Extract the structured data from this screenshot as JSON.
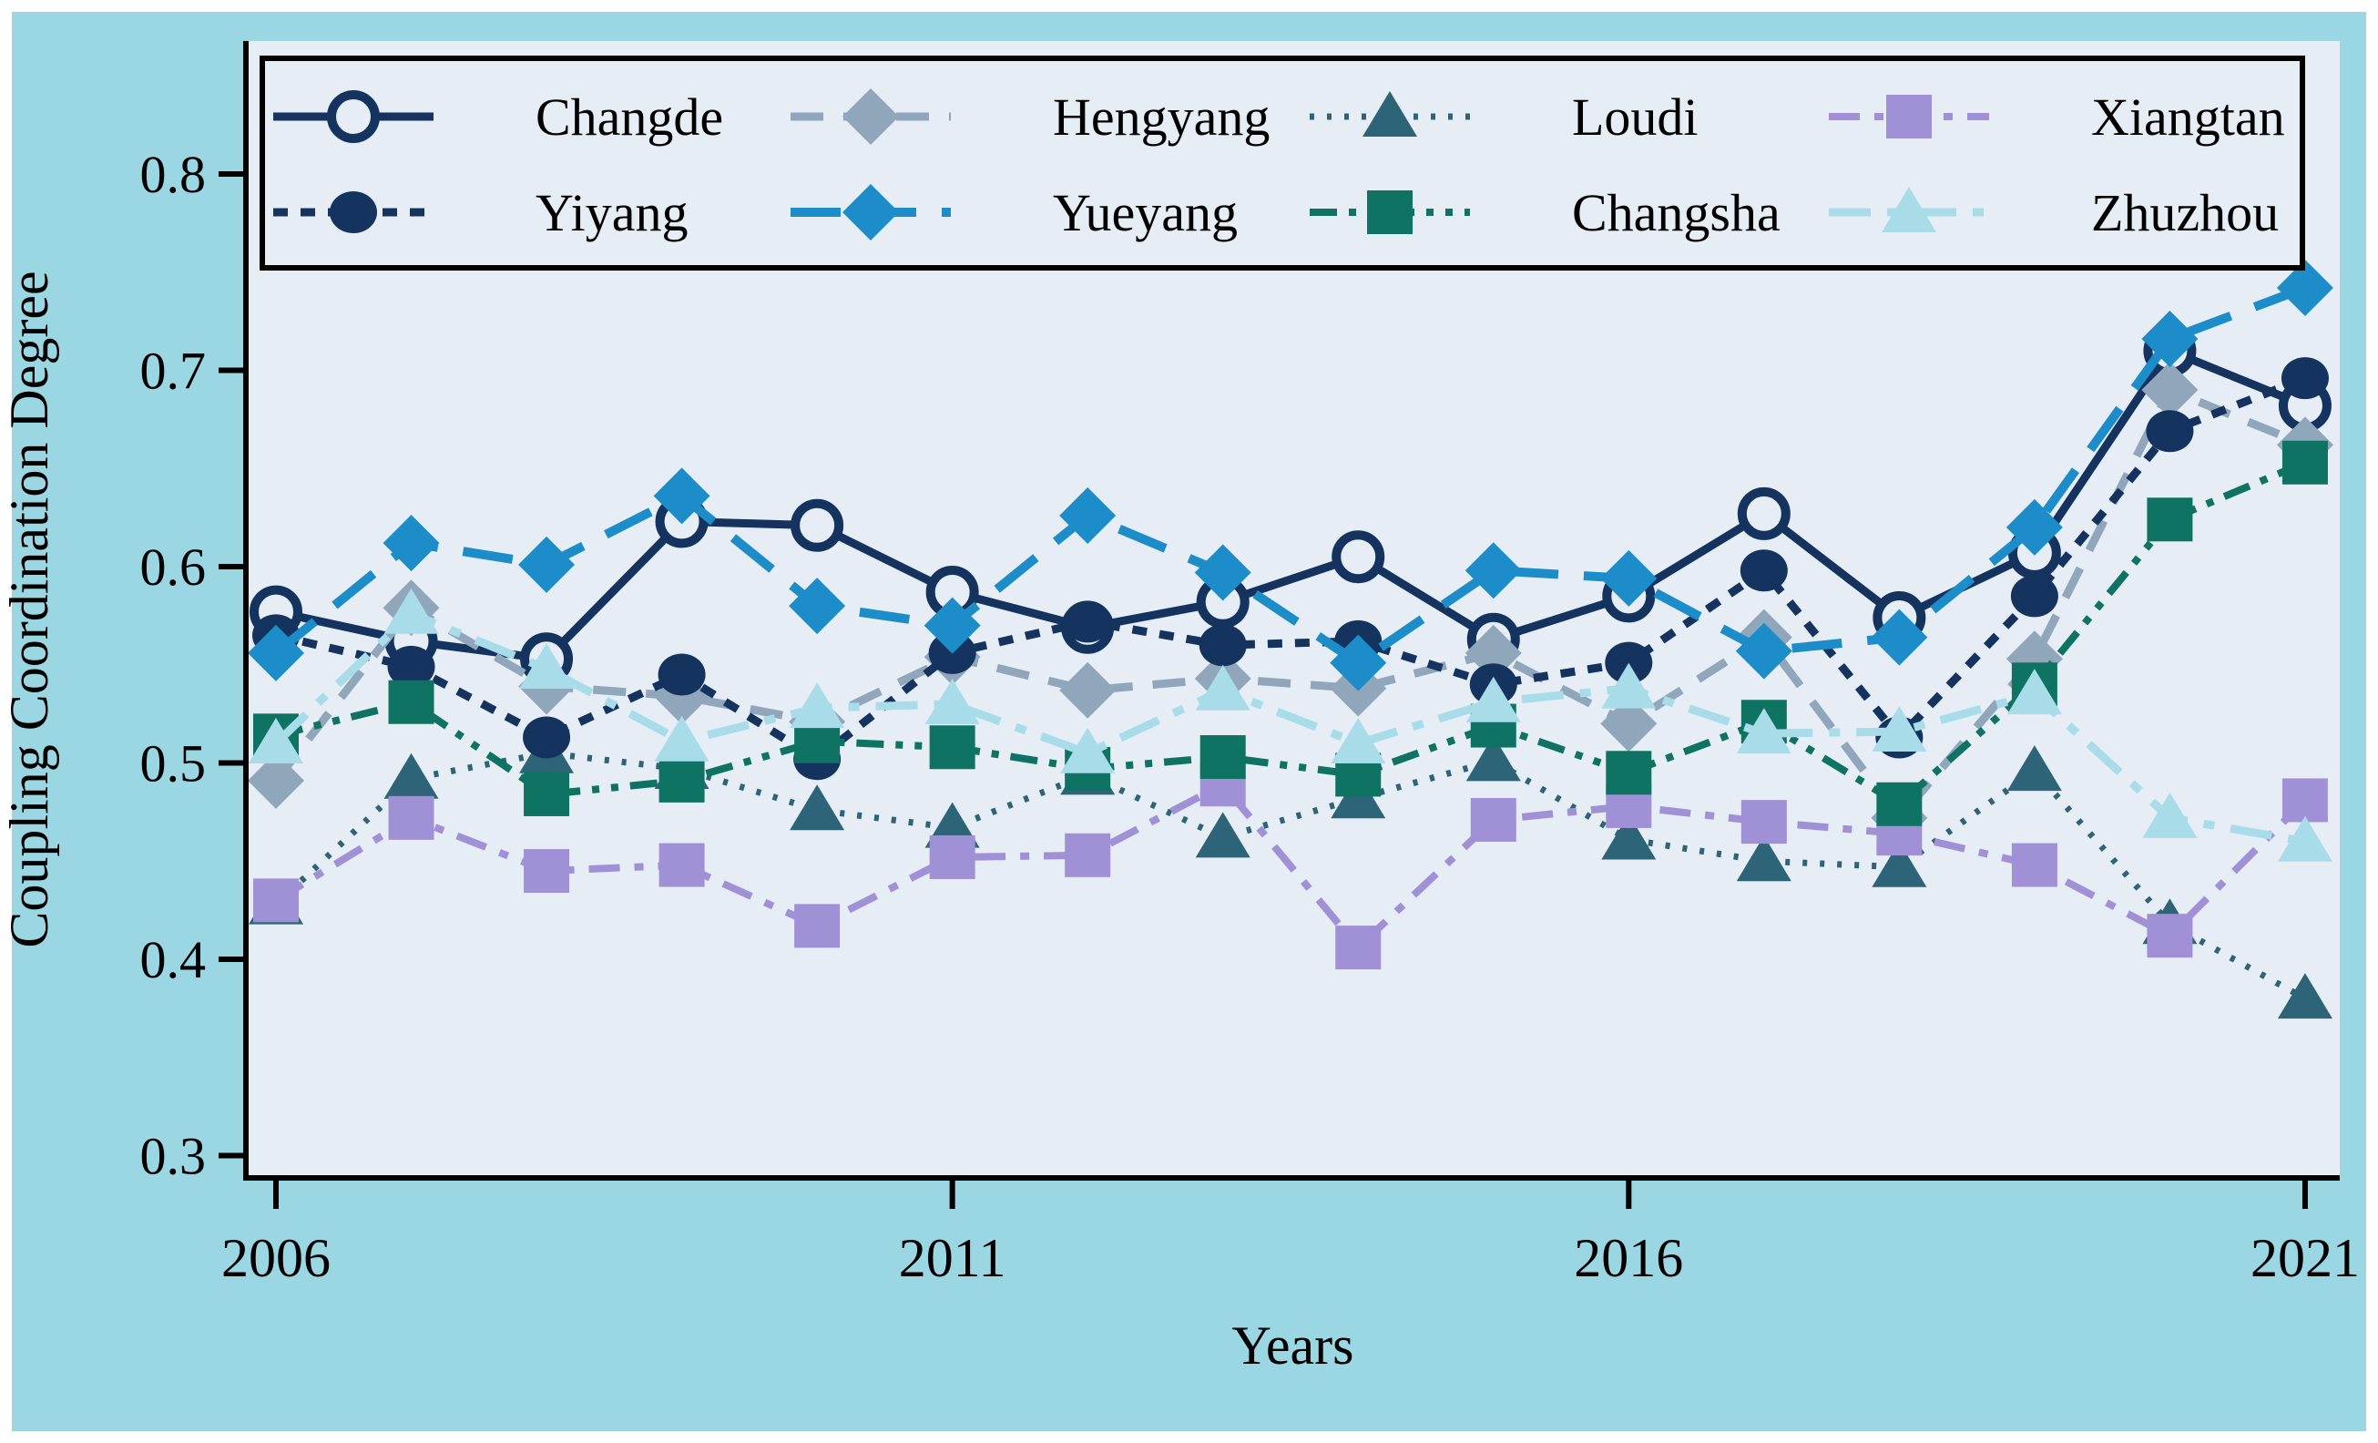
{
  "figure": {
    "outer_background": "#9bd7e3",
    "plot_background": "#e7edf5",
    "frame_border_color": "#000000"
  },
  "axes": {
    "x_label": "Years",
    "y_label": "Coupling Coordination Degree",
    "x_tick_labels": [
      "2006",
      "2011",
      "2016",
      "2021"
    ],
    "x_tick_years": [
      2006,
      2011,
      2016,
      2021
    ],
    "y_tick_labels": [
      "0.3",
      "0.4",
      "0.5",
      "0.6",
      "0.7",
      "0.8"
    ],
    "y_tick_values": [
      0.3,
      0.4,
      0.5,
      0.6,
      0.7,
      0.8
    ]
  },
  "legend": {
    "position": "upper center inside plot, 2 rows x 4 columns, black border",
    "row_major_labels": [
      "Changde",
      "Hengyang",
      "Loudi",
      "Xiangtan",
      "Yiyang",
      "Yueyang",
      "Changsha",
      "Zhuzhou"
    ]
  },
  "chart_data": {
    "type": "line",
    "title": "",
    "xlabel": "Years",
    "ylabel": "Coupling Coordination Degree",
    "x": [
      2006,
      2007,
      2008,
      2009,
      2010,
      2011,
      2012,
      2013,
      2014,
      2015,
      2016,
      2017,
      2018,
      2019,
      2020,
      2021
    ],
    "xlim": [
      2005.8,
      2021.3
    ],
    "ylim": [
      0.28,
      0.845
    ],
    "grid": false,
    "legend_position": "upper center",
    "series": [
      {
        "name": "Changde",
        "color": "#14335f",
        "dash": "",
        "marker": "circle-open",
        "line_width": 9,
        "values": [
          0.577,
          0.562,
          0.553,
          0.623,
          0.621,
          0.587,
          0.569,
          0.582,
          0.605,
          0.563,
          0.585,
          0.627,
          0.574,
          0.607,
          0.71,
          0.682
        ]
      },
      {
        "name": "Hengyang",
        "color": "#8fa6bb",
        "dash": "36 22",
        "marker": "diamond",
        "line_width": 9,
        "values": [
          0.491,
          0.579,
          0.539,
          0.534,
          0.521,
          0.554,
          0.537,
          0.543,
          0.538,
          0.556,
          0.52,
          0.564,
          0.472,
          0.553,
          0.69,
          0.662
        ]
      },
      {
        "name": "Loudi",
        "color": "#2d6478",
        "dash": "5 14",
        "marker": "triangle",
        "line_width": 7,
        "values": [
          0.428,
          0.492,
          0.505,
          0.497,
          0.476,
          0.467,
          0.494,
          0.462,
          0.482,
          0.501,
          0.461,
          0.45,
          0.447,
          0.496,
          0.418,
          0.38
        ]
      },
      {
        "name": "Xiangtan",
        "color": "#a091d6",
        "dash": "34 16 10 16",
        "marker": "square",
        "line_width": 8,
        "values": [
          0.43,
          0.472,
          0.445,
          0.448,
          0.417,
          0.452,
          0.453,
          0.489,
          0.406,
          0.471,
          0.478,
          0.47,
          0.464,
          0.448,
          0.412,
          0.481
        ]
      },
      {
        "name": "Yiyang",
        "color": "#14335f",
        "dash": "16 14",
        "marker": "circle",
        "line_width": 9,
        "values": [
          0.565,
          0.549,
          0.513,
          0.545,
          0.502,
          0.556,
          0.572,
          0.56,
          0.562,
          0.54,
          0.551,
          0.598,
          0.513,
          0.585,
          0.669,
          0.696
        ]
      },
      {
        "name": "Yueyang",
        "color": "#1c8dc8",
        "dash": "55 28",
        "marker": "diamond",
        "line_width": 10,
        "values": [
          0.556,
          0.612,
          0.601,
          0.636,
          0.58,
          0.57,
          0.626,
          0.597,
          0.551,
          0.598,
          0.594,
          0.557,
          0.564,
          0.62,
          0.716,
          0.742
        ]
      },
      {
        "name": "Changsha",
        "color": "#0e7362",
        "dash": "30 13 8 13 8 13",
        "marker": "square",
        "line_width": 8,
        "values": [
          0.514,
          0.531,
          0.484,
          0.491,
          0.511,
          0.508,
          0.497,
          0.503,
          0.494,
          0.519,
          0.495,
          0.521,
          0.479,
          0.54,
          0.624,
          0.653
        ]
      },
      {
        "name": "Zhuzhou",
        "color": "#a7dce8",
        "dash": "46 18 12 18",
        "marker": "triangle",
        "line_width": 9,
        "values": [
          0.51,
          0.576,
          0.548,
          0.511,
          0.528,
          0.53,
          0.505,
          0.537,
          0.51,
          0.531,
          0.538,
          0.515,
          0.516,
          0.535,
          0.472,
          0.46
        ]
      }
    ]
  }
}
